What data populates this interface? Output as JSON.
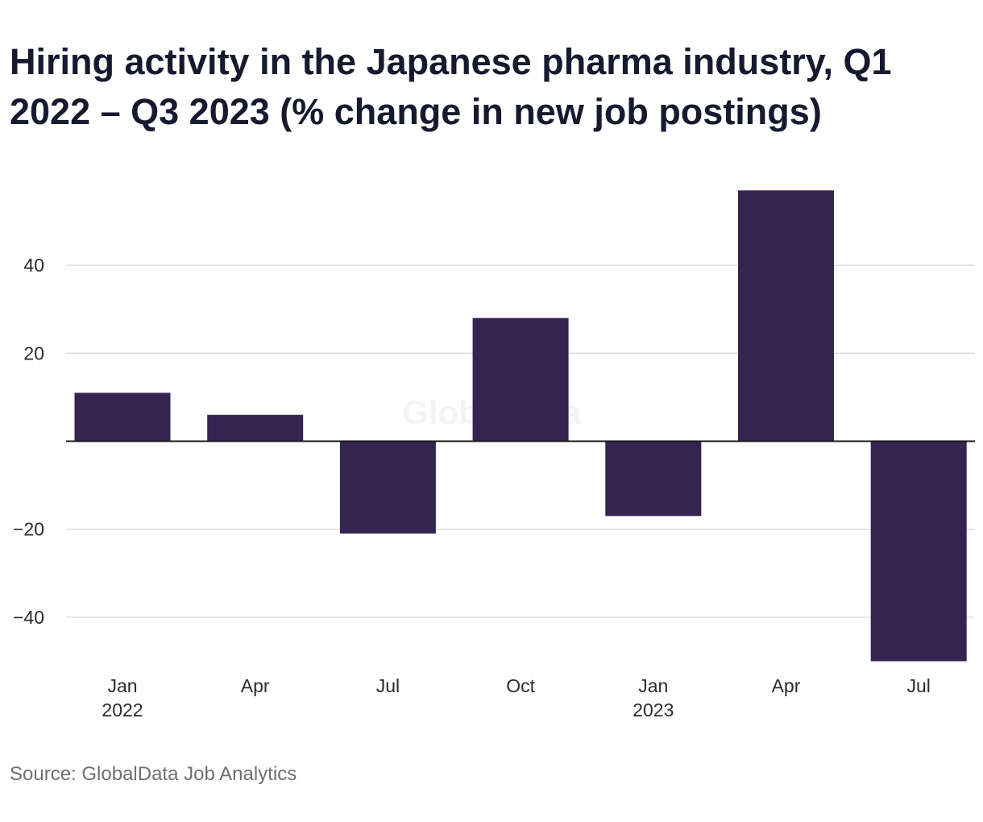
{
  "chart_data": {
    "type": "bar",
    "title": "Hiring activity in the Japanese pharma industry, Q1 2022 – Q3 2023 (% change in new job postings)",
    "categories": [
      "Jan 2022",
      "Apr",
      "Jul",
      "Oct",
      "Jan 2023",
      "Apr",
      "Jul"
    ],
    "category_labels": [
      [
        "Jan",
        "2022"
      ],
      [
        "Apr"
      ],
      [
        "Jul"
      ],
      [
        "Oct"
      ],
      [
        "Jan",
        "2023"
      ],
      [
        "Apr"
      ],
      [
        "Jul"
      ]
    ],
    "values": [
      11,
      6,
      -21,
      28,
      -17,
      57,
      -50
    ],
    "yticks": [
      40,
      20,
      -20,
      -40
    ],
    "ytick_labels": [
      "40",
      "20",
      "−20",
      "−40"
    ],
    "ylim": [
      -50,
      57
    ],
    "xlabel": "",
    "ylabel": "",
    "grid": true,
    "legend": "none",
    "bar_color": "#352452",
    "watermark": "GlobalData"
  },
  "source": "Source: GlobalData Job Analytics"
}
